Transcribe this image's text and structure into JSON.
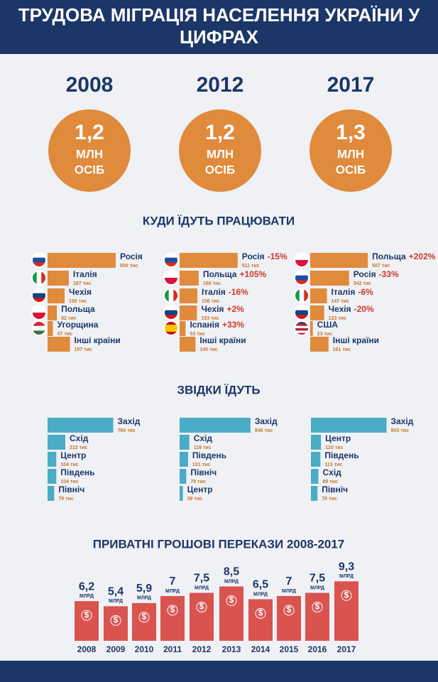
{
  "title": "ТРУДОВА МІГРАЦІЯ НАСЕЛЕННЯ УКРАЇНИ У ЦИФРАХ",
  "totals": {
    "years": [
      "2008",
      "2012",
      "2017"
    ],
    "values": [
      1.2,
      1.2,
      1.3
    ],
    "value_labels": [
      "1,2",
      "1,2",
      "1,3"
    ],
    "unit_line1": "МЛН",
    "unit_line2": "ОСІБ",
    "color": "#e08a3c"
  },
  "destinations_title": "КУДИ ЇДУТЬ ПРАЦЮВАТИ",
  "origins_title": "ЗВІДКИ ЇДУТЬ",
  "chart_data": [
    {
      "type": "hbar",
      "categories": [
        "Росія",
        "Італія",
        "Чехія",
        "Польща",
        "Угорщина",
        "Інші країни"
      ],
      "values": [
        600,
        187,
        150,
        82,
        47,
        197
      ],
      "value_unit": "тис",
      "color": "#e08a3c",
      "flags": [
        {
          "stripes": "h",
          "colors": [
            "#ffffff",
            "#1c4fa3",
            "#d52b1e"
          ]
        },
        {
          "stripes": "v",
          "colors": [
            "#129b46",
            "#ffffff",
            "#d52b1e"
          ]
        },
        {
          "stripes": "h",
          "colors": [
            "#ffffff",
            "#11457e",
            "#d7141a"
          ]
        },
        {
          "stripes": "h",
          "colors": [
            "#ffffff",
            "#dc143c"
          ]
        },
        {
          "stripes": "h",
          "colors": [
            "#cd2a3e",
            "#ffffff",
            "#436f4d"
          ]
        },
        null
      ]
    },
    {
      "type": "hbar",
      "categories": [
        "Росія",
        "Польща",
        "Італія",
        "Чехія",
        "Іспанія",
        "Інші країни"
      ],
      "values": [
        511,
        168,
        156,
        153,
        53,
        140
      ],
      "value_unit": "тис",
      "change_labels": [
        "-15%",
        "+105%",
        "-16%",
        "+2%",
        "+33%",
        null
      ],
      "color": "#e08a3c",
      "flags": [
        {
          "stripes": "h",
          "colors": [
            "#ffffff",
            "#1c4fa3",
            "#d52b1e"
          ]
        },
        {
          "stripes": "h",
          "colors": [
            "#ffffff",
            "#dc143c"
          ]
        },
        {
          "stripes": "v",
          "colors": [
            "#129b46",
            "#ffffff",
            "#d52b1e"
          ]
        },
        {
          "stripes": "h",
          "colors": [
            "#ffffff",
            "#11457e",
            "#d7141a"
          ]
        },
        {
          "stripes": "h",
          "colors": [
            "#c60b1e",
            "#ffc400",
            "#ffc400",
            "#c60b1e"
          ]
        },
        null
      ]
    },
    {
      "type": "hbar",
      "categories": [
        "Польща",
        "Росія",
        "Італія",
        "Чехія",
        "США",
        "Інші країни"
      ],
      "values": [
        507,
        342,
        147,
        123,
        23,
        161
      ],
      "value_unit": "тис",
      "change_labels": [
        "+202%",
        "-33%",
        "-6%",
        "-20%",
        null,
        null
      ],
      "color": "#e08a3c",
      "flags": [
        {
          "stripes": "h",
          "colors": [
            "#ffffff",
            "#dc143c"
          ]
        },
        {
          "stripes": "h",
          "colors": [
            "#ffffff",
            "#1c4fa3",
            "#d52b1e"
          ]
        },
        {
          "stripes": "v",
          "colors": [
            "#129b46",
            "#ffffff",
            "#d52b1e"
          ]
        },
        {
          "stripes": "h",
          "colors": [
            "#ffffff",
            "#11457e",
            "#d7141a"
          ]
        },
        {
          "stripes": "h",
          "colors": [
            "#3c3b6e",
            "#b22234",
            "#ffffff",
            "#b22234",
            "#ffffff",
            "#b22234"
          ]
        },
        null
      ]
    },
    {
      "type": "hbar",
      "categories": [
        "Захід",
        "Схід",
        "Центр",
        "Південь",
        "Північ"
      ],
      "values": [
        784,
        212,
        104,
        104,
        79
      ],
      "value_unit": "тис",
      "color": "#4bacc6"
    },
    {
      "type": "hbar",
      "categories": [
        "Захід",
        "Схід",
        "Південь",
        "Північ",
        "Центр"
      ],
      "values": [
        846,
        116,
        101,
        79,
        39
      ],
      "value_unit": "тис",
      "color": "#4bacc6"
    },
    {
      "type": "hbar",
      "categories": [
        "Захід",
        "Центр",
        "Південь",
        "Схід",
        "Північ"
      ],
      "values": [
        903,
        120,
        113,
        89,
        78
      ],
      "value_unit": "тис",
      "color": "#4bacc6"
    },
    {
      "type": "bar",
      "title": "ПРИВАТНІ ГРОШОВІ ПЕРЕКАЗИ 2008-2017",
      "categories": [
        "2008",
        "2009",
        "2010",
        "2011",
        "2012",
        "2013",
        "2014",
        "2015",
        "2016",
        "2017"
      ],
      "values": [
        6.2,
        5.4,
        5.9,
        7,
        7.5,
        8.5,
        6.5,
        7,
        7.5,
        9.3
      ],
      "value_labels": [
        "6,2",
        "5,4",
        "5,9",
        "7",
        "7,5",
        "8,5",
        "6,5",
        "7",
        "7,5",
        "9,3"
      ],
      "unit": "МЛРД",
      "bar_icon": "$",
      "color": "#d9534f"
    }
  ]
}
